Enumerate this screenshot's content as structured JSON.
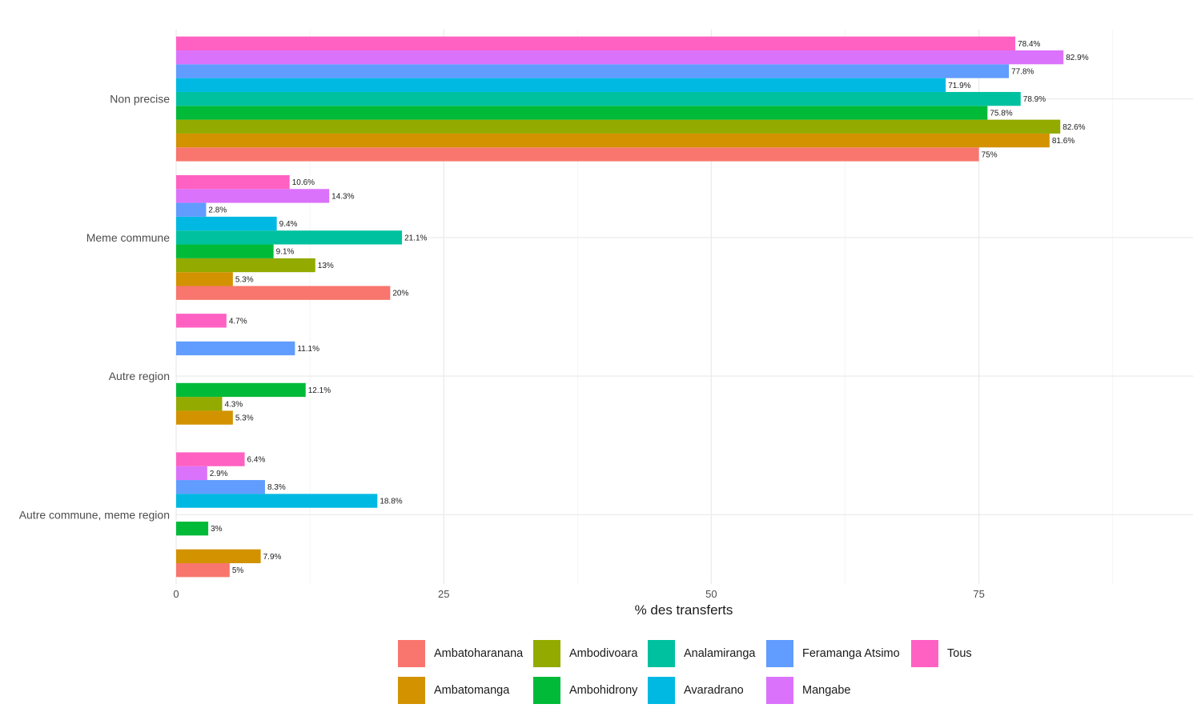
{
  "chart_data": {
    "type": "bar",
    "orientation": "horizontal",
    "xlabel": "% des transferts",
    "ylabel": "",
    "xlim": [
      0,
      95
    ],
    "xticks": [
      0,
      25,
      50,
      75
    ],
    "grid": true,
    "legend_position": "bottom",
    "categories": [
      "Non precise",
      "Meme commune",
      "Autre region",
      "Autre commune, meme region"
    ],
    "series": [
      {
        "name": "Ambatoharanana",
        "color": "#F8766D",
        "values": [
          75,
          20,
          null,
          5
        ],
        "labels": [
          "75%",
          "20%",
          null,
          "5%"
        ]
      },
      {
        "name": "Ambatomanga",
        "color": "#D39200",
        "values": [
          81.6,
          5.3,
          5.3,
          7.9
        ],
        "labels": [
          "81.6%",
          "5.3%",
          "5.3%",
          "7.9%"
        ]
      },
      {
        "name": "Ambodivoara",
        "color": "#93AA00",
        "values": [
          82.6,
          13,
          4.3,
          null
        ],
        "labels": [
          "82.6%",
          "13%",
          "4.3%",
          null
        ]
      },
      {
        "name": "Ambohidrony",
        "color": "#00BA38",
        "values": [
          75.8,
          9.1,
          12.1,
          3
        ],
        "labels": [
          "75.8%",
          "9.1%",
          "12.1%",
          "3%"
        ]
      },
      {
        "name": "Analamiranga",
        "color": "#00C19F",
        "values": [
          78.9,
          21.1,
          null,
          null
        ],
        "labels": [
          "78.9%",
          "21.1%",
          null,
          null
        ]
      },
      {
        "name": "Avaradrano",
        "color": "#00B9E3",
        "values": [
          71.9,
          9.4,
          null,
          18.8
        ],
        "labels": [
          "71.9%",
          "9.4%",
          null,
          "18.8%"
        ]
      },
      {
        "name": "Feramanga Atsimo",
        "color": "#619CFF",
        "values": [
          77.8,
          2.8,
          11.1,
          8.3
        ],
        "labels": [
          "77.8%",
          "2.8%",
          "11.1%",
          "8.3%"
        ]
      },
      {
        "name": "Mangabe",
        "color": "#DB72FB",
        "values": [
          82.9,
          14.3,
          null,
          2.9
        ],
        "labels": [
          "82.9%",
          "14.3%",
          null,
          "2.9%"
        ]
      },
      {
        "name": "Tous",
        "color": "#FF61C3",
        "values": [
          78.4,
          10.6,
          4.7,
          6.4
        ],
        "labels": [
          "78.4%",
          "10.6%",
          "4.7%",
          "6.4%"
        ]
      }
    ]
  }
}
